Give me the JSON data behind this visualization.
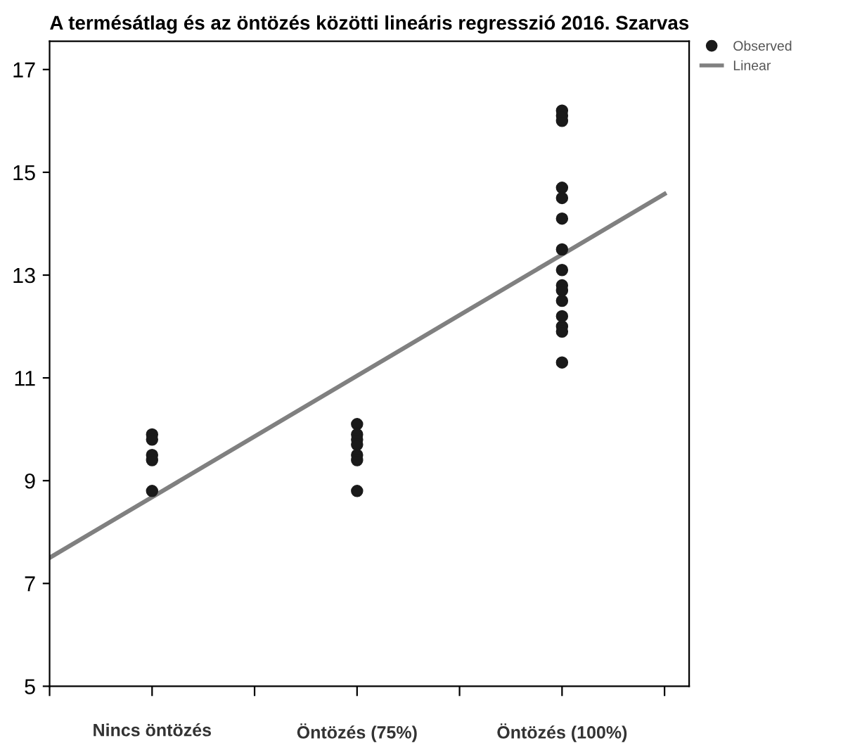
{
  "chart_data": {
    "type": "scatter",
    "title": "A termésátlag és az öntözés közötti lineáris regresszió 2016. Szarvas",
    "categories": [
      null,
      "Nincs öntözés",
      null,
      "Öntözés (75%)",
      null,
      "Öntözés (100%)",
      null
    ],
    "ylim": [
      5,
      17.55
    ],
    "yticks": [
      5,
      7,
      9,
      11,
      13,
      15,
      17
    ],
    "grid": false,
    "legend": "top right",
    "series": [
      {
        "name": "Observed",
        "color": "#1a1a1a",
        "marker": "circle",
        "x": [
          "Nincs öntözés",
          "Nincs öntözés",
          "Nincs öntözés",
          "Nincs öntözés",
          "Nincs öntözés",
          "Öntözés (75%)",
          "Öntözés (75%)",
          "Öntözés (75%)",
          "Öntözés (75%)",
          "Öntözés (75%)",
          "Öntözés (75%)",
          "Öntözés (75%)",
          "Öntözés (100%)",
          "Öntözés (100%)",
          "Öntözés (100%)",
          "Öntözés (100%)",
          "Öntözés (100%)",
          "Öntözés (100%)",
          "Öntözés (100%)",
          "Öntözés (100%)",
          "Öntözés (100%)",
          "Öntözés (100%)",
          "Öntözés (100%)",
          "Öntözés (100%)",
          "Öntözés (100%)",
          "Öntözés (100%)",
          "Öntözés (100%)"
        ],
        "values": [
          9.9,
          9.8,
          9.5,
          9.4,
          8.8,
          10.1,
          9.9,
          9.8,
          9.7,
          9.5,
          9.4,
          8.8,
          16.2,
          16.1,
          16.0,
          14.7,
          14.5,
          14.1,
          13.5,
          13.1,
          12.8,
          12.7,
          12.5,
          12.2,
          12.0,
          11.9,
          11.3
        ]
      },
      {
        "name": "Linear",
        "type": "line",
        "color": "#808080",
        "values": [
          7.5,
          8.68,
          9.86,
          11.04,
          12.22,
          13.4,
          14.58
        ]
      }
    ]
  }
}
